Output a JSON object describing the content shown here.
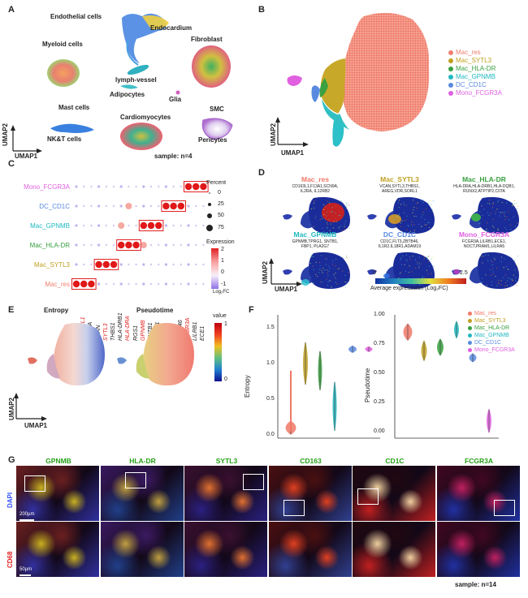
{
  "panels": {
    "a": "A",
    "b": "B",
    "c": "C",
    "d": "D",
    "e": "E",
    "f": "F",
    "g": "G"
  },
  "panelA": {
    "clusters": [
      "Endothelial cells",
      "Endocardium",
      "Myeloid cells",
      "Fibroblast",
      "lymph-vessel",
      "Adipocytes",
      "Glia",
      "Mast cells",
      "SMC",
      "NK&T cells",
      "Cardiomyocytes",
      "Pericytes"
    ],
    "xaxis": "UMAP1",
    "yaxis": "UMAP2",
    "sample": "sample: n=4"
  },
  "panelB": {
    "xaxis": "UMAP1",
    "yaxis": "UMAP2",
    "legend": [
      {
        "label": "Mac_res",
        "color": "#f08070"
      },
      {
        "label": "Mac_SYTL3",
        "color": "#c0a020"
      },
      {
        "label": "Mac_HLA-DR",
        "color": "#3aa040"
      },
      {
        "label": "Mac_GPNMB",
        "color": "#20b8c0"
      },
      {
        "label": "DC_CD1C",
        "color": "#5a8ae0"
      },
      {
        "label": "Mono_FCGR3A",
        "color": "#e060e0"
      }
    ]
  },
  "panelC": {
    "rows": [
      {
        "label": "Mono_FCGR3A",
        "color": "#e060e0"
      },
      {
        "label": "DC_CD1C",
        "color": "#5a8ae0"
      },
      {
        "label": "Mac_GPNMB",
        "color": "#20b8c0"
      },
      {
        "label": "Mac_HLA-DR",
        "color": "#3aa040"
      },
      {
        "label": "Mac_SYTL3",
        "color": "#c0a020"
      },
      {
        "label": "Mac_res",
        "color": "#f08070"
      }
    ],
    "genes": [
      {
        "name": "F13A1",
        "red": false
      },
      {
        "name": "CD163L1",
        "red": true
      },
      {
        "name": "SCN9A",
        "red": false
      },
      {
        "name": "VCAN",
        "red": false
      },
      {
        "name": "SYTL3",
        "red": true
      },
      {
        "name": "THBS1",
        "red": false
      },
      {
        "name": "HLA-DRB1",
        "red": false
      },
      {
        "name": "HLA-DRA",
        "red": true
      },
      {
        "name": "RGS1",
        "red": false
      },
      {
        "name": "GPNMB",
        "red": true
      },
      {
        "name": "SNTB1",
        "red": false
      },
      {
        "name": "TPRG1",
        "red": false
      },
      {
        "name": "FLT3",
        "red": false
      },
      {
        "name": "CD1C",
        "red": true
      },
      {
        "name": "ZBTB46",
        "red": false
      },
      {
        "name": "FCGR3A",
        "red": true
      },
      {
        "name": "LILRB1",
        "red": false
      },
      {
        "name": "ECE1",
        "red": false
      }
    ],
    "percent_title": "Percent",
    "percent_values": [
      "0",
      "25",
      "50",
      "75"
    ],
    "expr_title": "Expression",
    "expr_ticks": [
      "2",
      "1",
      "0",
      "-1"
    ],
    "expr_unit": "Log₂FC"
  },
  "panelD": {
    "groups": [
      {
        "title": "Mac_res",
        "color": "#f07868",
        "genes": "CD163L1,F13A1,SCN9A,\nIL2RA, IL12RB2"
      },
      {
        "title": "Mac_SYTL3",
        "color": "#c0a020",
        "genes": "VCAN,SYTL3,THBS1,\nAREG,VDR,SORL1"
      },
      {
        "title": "Mac_HLA-DR",
        "color": "#3aa040",
        "genes": "HLA-DRA,HLA-DRB1,HLA-DQB1,\nRUNX2,ATP7IP2,CIITA"
      },
      {
        "title": "Mac_GPNMB",
        "color": "#20b8c0",
        "genes": "GPNMB,TPRG1, SNTB1,\nFBP1, PLA2G7"
      },
      {
        "title": "DC_CD1C",
        "color": "#5a8ae0",
        "genes": "CD1C,FLT3,ZBTB46,\nIL1R2,IL18R1,ADAM19"
      },
      {
        "title": "Mono_FCGR3A",
        "color": "#e060e0",
        "genes": "FCGR3A,LILRB1,ECE1,\nNOCT,PRAM1,LILRA5"
      }
    ],
    "xaxis": "UMAP1",
    "yaxis": "UMAP2",
    "cbar_min": "0",
    "cbar_max": "2.5",
    "cbar_label": "Average expresssion (Log₂FC)"
  },
  "panelE": {
    "entropy": "Entropy",
    "pseudotime": "Pseudotime",
    "value": "value",
    "vmax": "1",
    "vmin": "0",
    "xaxis": "UMAP1",
    "yaxis": "UMAP2"
  },
  "panelF": {
    "ylab1": "Entropy",
    "ylab2": "Pseudotime",
    "ticks1": [
      "1.5",
      "1.0",
      "0.5",
      "0.0"
    ],
    "ticks2": [
      "1.00",
      "0.75",
      "0.50",
      "0.25",
      "0.00"
    ],
    "legend": [
      {
        "label": "Mac_res",
        "color": "#f07868"
      },
      {
        "label": "Mac_SYTL3",
        "color": "#c0a020"
      },
      {
        "label": "Mac_HLA-DR",
        "color": "#3aa040"
      },
      {
        "label": "Mac_GPNMB",
        "color": "#20b8c0"
      },
      {
        "label": "DC_CD1C",
        "color": "#5a8ae0"
      },
      {
        "label": "Mono_FCGR3A",
        "color": "#e060e0"
      }
    ]
  },
  "panelG": {
    "markers": [
      "GPNMB",
      "HLA-DR",
      "SYTL3",
      "CD163",
      "CD1C",
      "FCGR3A"
    ],
    "dapi": "DAPI",
    "cd68": "CD68",
    "scale1": "200μm",
    "scale2": "50μm",
    "sample": "sample: n=14"
  }
}
